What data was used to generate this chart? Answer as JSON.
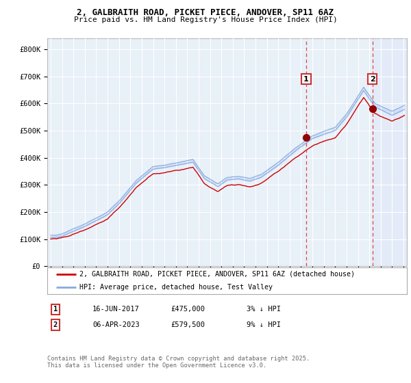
{
  "title": "2, GALBRAITH ROAD, PICKET PIECE, ANDOVER, SP11 6AZ",
  "subtitle": "Price paid vs. HM Land Registry's House Price Index (HPI)",
  "ylabel_ticks": [
    "£0",
    "£100K",
    "£200K",
    "£300K",
    "£400K",
    "£500K",
    "£600K",
    "£700K",
    "£800K"
  ],
  "ytick_values": [
    0,
    100000,
    200000,
    300000,
    400000,
    500000,
    600000,
    700000,
    800000
  ],
  "ylim": [
    0,
    840000
  ],
  "xlim_start": 1994.7,
  "xlim_end": 2026.3,
  "sale1_date": 2017.45,
  "sale1_price": 475000,
  "sale1_label": "1",
  "sale2_date": 2023.27,
  "sale2_price": 579500,
  "sale2_label": "2",
  "legend_entry1": "2, GALBRAITH ROAD, PICKET PIECE, ANDOVER, SP11 6AZ (detached house)",
  "legend_entry2": "HPI: Average price, detached house, Test Valley",
  "table_row1": [
    "1",
    "16-JUN-2017",
    "£475,000",
    "3% ↓ HPI"
  ],
  "table_row2": [
    "2",
    "06-APR-2023",
    "£579,500",
    "9% ↓ HPI"
  ],
  "footnote": "Contains HM Land Registry data © Crown copyright and database right 2025.\nThis data is licensed under the Open Government Licence v3.0.",
  "line_color_red": "#cc0000",
  "line_color_blue": "#88aadd",
  "fill_color_blue": "#ccddf5",
  "plot_bg": "#e8f0f8",
  "grid_color": "#ffffff",
  "dashed_line_color": "#dd4444",
  "shade_after_sale2": "#ddeeff"
}
